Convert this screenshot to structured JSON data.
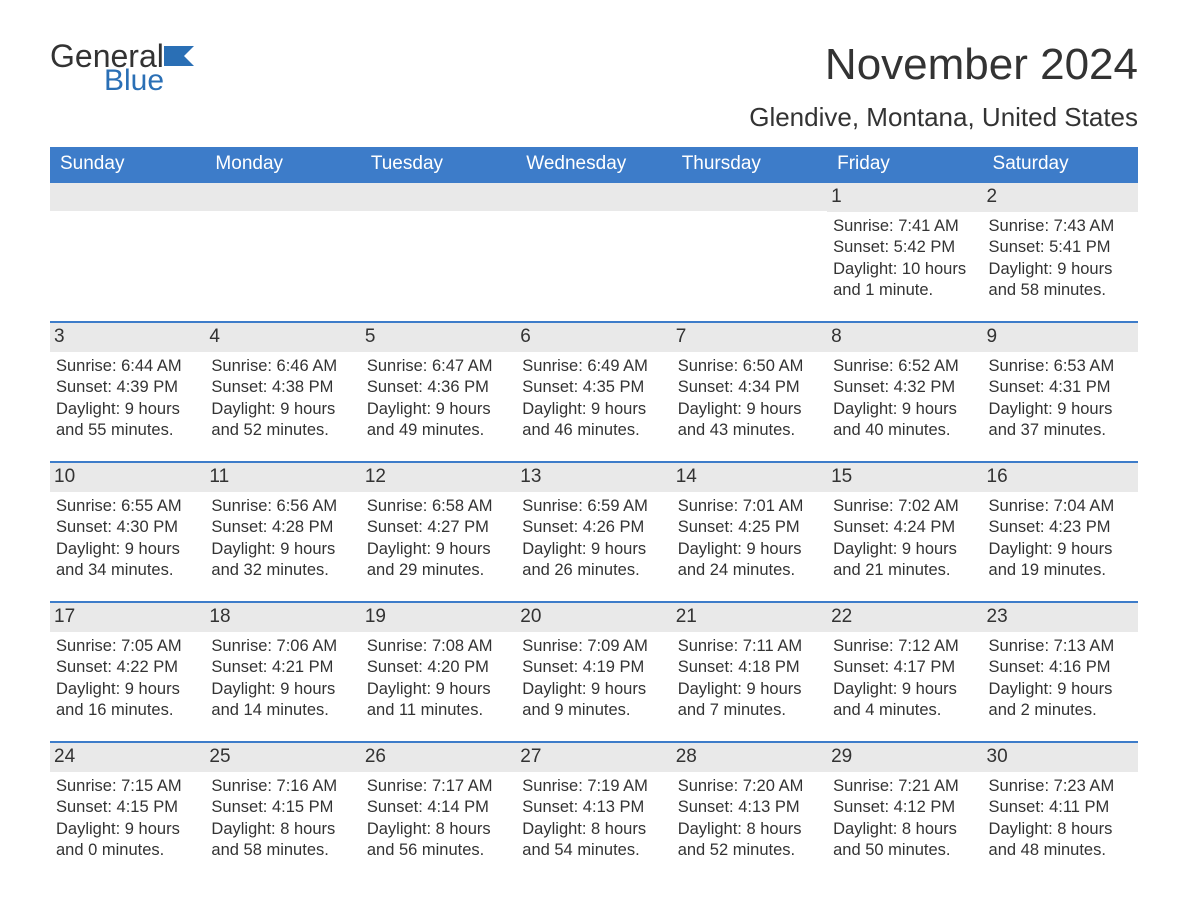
{
  "logo": {
    "text1": "General",
    "text2": "Blue",
    "color1": "#333333",
    "color2": "#2a6fb5",
    "iconColor": "#2a6fb5"
  },
  "title": "November 2024",
  "location": "Glendive, Montana, United States",
  "colors": {
    "headerBg": "#3d7cc9",
    "headerText": "#ffffff",
    "dayBarBg": "#e9e9e9",
    "rowBorder": "#3d7cc9",
    "text": "#333333",
    "background": "#ffffff"
  },
  "typography": {
    "titleSize": 44,
    "locationSize": 26,
    "headerSize": 19,
    "bodySize": 16.5,
    "dayNumSize": 19
  },
  "dayHeaders": [
    "Sunday",
    "Monday",
    "Tuesday",
    "Wednesday",
    "Thursday",
    "Friday",
    "Saturday"
  ],
  "weeks": [
    [
      {
        "empty": true
      },
      {
        "empty": true
      },
      {
        "empty": true
      },
      {
        "empty": true
      },
      {
        "empty": true
      },
      {
        "n": "1",
        "sunrise": "Sunrise: 7:41 AM",
        "sunset": "Sunset: 5:42 PM",
        "daylight": "Daylight: 10 hours and 1 minute."
      },
      {
        "n": "2",
        "sunrise": "Sunrise: 7:43 AM",
        "sunset": "Sunset: 5:41 PM",
        "daylight": "Daylight: 9 hours and 58 minutes."
      }
    ],
    [
      {
        "n": "3",
        "sunrise": "Sunrise: 6:44 AM",
        "sunset": "Sunset: 4:39 PM",
        "daylight": "Daylight: 9 hours and 55 minutes."
      },
      {
        "n": "4",
        "sunrise": "Sunrise: 6:46 AM",
        "sunset": "Sunset: 4:38 PM",
        "daylight": "Daylight: 9 hours and 52 minutes."
      },
      {
        "n": "5",
        "sunrise": "Sunrise: 6:47 AM",
        "sunset": "Sunset: 4:36 PM",
        "daylight": "Daylight: 9 hours and 49 minutes."
      },
      {
        "n": "6",
        "sunrise": "Sunrise: 6:49 AM",
        "sunset": "Sunset: 4:35 PM",
        "daylight": "Daylight: 9 hours and 46 minutes."
      },
      {
        "n": "7",
        "sunrise": "Sunrise: 6:50 AM",
        "sunset": "Sunset: 4:34 PM",
        "daylight": "Daylight: 9 hours and 43 minutes."
      },
      {
        "n": "8",
        "sunrise": "Sunrise: 6:52 AM",
        "sunset": "Sunset: 4:32 PM",
        "daylight": "Daylight: 9 hours and 40 minutes."
      },
      {
        "n": "9",
        "sunrise": "Sunrise: 6:53 AM",
        "sunset": "Sunset: 4:31 PM",
        "daylight": "Daylight: 9 hours and 37 minutes."
      }
    ],
    [
      {
        "n": "10",
        "sunrise": "Sunrise: 6:55 AM",
        "sunset": "Sunset: 4:30 PM",
        "daylight": "Daylight: 9 hours and 34 minutes."
      },
      {
        "n": "11",
        "sunrise": "Sunrise: 6:56 AM",
        "sunset": "Sunset: 4:28 PM",
        "daylight": "Daylight: 9 hours and 32 minutes."
      },
      {
        "n": "12",
        "sunrise": "Sunrise: 6:58 AM",
        "sunset": "Sunset: 4:27 PM",
        "daylight": "Daylight: 9 hours and 29 minutes."
      },
      {
        "n": "13",
        "sunrise": "Sunrise: 6:59 AM",
        "sunset": "Sunset: 4:26 PM",
        "daylight": "Daylight: 9 hours and 26 minutes."
      },
      {
        "n": "14",
        "sunrise": "Sunrise: 7:01 AM",
        "sunset": "Sunset: 4:25 PM",
        "daylight": "Daylight: 9 hours and 24 minutes."
      },
      {
        "n": "15",
        "sunrise": "Sunrise: 7:02 AM",
        "sunset": "Sunset: 4:24 PM",
        "daylight": "Daylight: 9 hours and 21 minutes."
      },
      {
        "n": "16",
        "sunrise": "Sunrise: 7:04 AM",
        "sunset": "Sunset: 4:23 PM",
        "daylight": "Daylight: 9 hours and 19 minutes."
      }
    ],
    [
      {
        "n": "17",
        "sunrise": "Sunrise: 7:05 AM",
        "sunset": "Sunset: 4:22 PM",
        "daylight": "Daylight: 9 hours and 16 minutes."
      },
      {
        "n": "18",
        "sunrise": "Sunrise: 7:06 AM",
        "sunset": "Sunset: 4:21 PM",
        "daylight": "Daylight: 9 hours and 14 minutes."
      },
      {
        "n": "19",
        "sunrise": "Sunrise: 7:08 AM",
        "sunset": "Sunset: 4:20 PM",
        "daylight": "Daylight: 9 hours and 11 minutes."
      },
      {
        "n": "20",
        "sunrise": "Sunrise: 7:09 AM",
        "sunset": "Sunset: 4:19 PM",
        "daylight": "Daylight: 9 hours and 9 minutes."
      },
      {
        "n": "21",
        "sunrise": "Sunrise: 7:11 AM",
        "sunset": "Sunset: 4:18 PM",
        "daylight": "Daylight: 9 hours and 7 minutes."
      },
      {
        "n": "22",
        "sunrise": "Sunrise: 7:12 AM",
        "sunset": "Sunset: 4:17 PM",
        "daylight": "Daylight: 9 hours and 4 minutes."
      },
      {
        "n": "23",
        "sunrise": "Sunrise: 7:13 AM",
        "sunset": "Sunset: 4:16 PM",
        "daylight": "Daylight: 9 hours and 2 minutes."
      }
    ],
    [
      {
        "n": "24",
        "sunrise": "Sunrise: 7:15 AM",
        "sunset": "Sunset: 4:15 PM",
        "daylight": "Daylight: 9 hours and 0 minutes."
      },
      {
        "n": "25",
        "sunrise": "Sunrise: 7:16 AM",
        "sunset": "Sunset: 4:15 PM",
        "daylight": "Daylight: 8 hours and 58 minutes."
      },
      {
        "n": "26",
        "sunrise": "Sunrise: 7:17 AM",
        "sunset": "Sunset: 4:14 PM",
        "daylight": "Daylight: 8 hours and 56 minutes."
      },
      {
        "n": "27",
        "sunrise": "Sunrise: 7:19 AM",
        "sunset": "Sunset: 4:13 PM",
        "daylight": "Daylight: 8 hours and 54 minutes."
      },
      {
        "n": "28",
        "sunrise": "Sunrise: 7:20 AM",
        "sunset": "Sunset: 4:13 PM",
        "daylight": "Daylight: 8 hours and 52 minutes."
      },
      {
        "n": "29",
        "sunrise": "Sunrise: 7:21 AM",
        "sunset": "Sunset: 4:12 PM",
        "daylight": "Daylight: 8 hours and 50 minutes."
      },
      {
        "n": "30",
        "sunrise": "Sunrise: 7:23 AM",
        "sunset": "Sunset: 4:11 PM",
        "daylight": "Daylight: 8 hours and 48 minutes."
      }
    ]
  ]
}
